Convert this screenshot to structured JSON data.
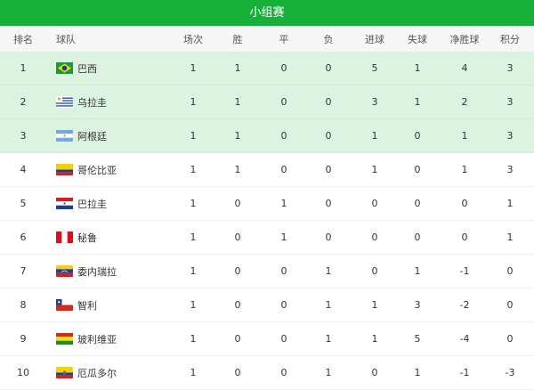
{
  "title": "小组赛",
  "columns": [
    "排名",
    "球队",
    "场次",
    "胜",
    "平",
    "负",
    "进球",
    "失球",
    "净胜球",
    "积分"
  ],
  "rows": [
    {
      "rank": "1",
      "team": "巴西",
      "flag": "brazil-flag",
      "p": "1",
      "w": "1",
      "d": "0",
      "l": "0",
      "gf": "5",
      "ga": "1",
      "gd": "4",
      "pts": "3",
      "qualified": true
    },
    {
      "rank": "2",
      "team": "乌拉圭",
      "flag": "uruguay-flag",
      "p": "1",
      "w": "1",
      "d": "0",
      "l": "0",
      "gf": "3",
      "ga": "1",
      "gd": "2",
      "pts": "3",
      "qualified": true
    },
    {
      "rank": "3",
      "team": "阿根廷",
      "flag": "argentina-flag",
      "p": "1",
      "w": "1",
      "d": "0",
      "l": "0",
      "gf": "1",
      "ga": "0",
      "gd": "1",
      "pts": "3",
      "qualified": true
    },
    {
      "rank": "4",
      "team": "哥伦比亚",
      "flag": "colombia-flag",
      "p": "1",
      "w": "1",
      "d": "0",
      "l": "0",
      "gf": "1",
      "ga": "0",
      "gd": "1",
      "pts": "3"
    },
    {
      "rank": "5",
      "team": "巴拉圭",
      "flag": "paraguay-flag",
      "p": "1",
      "w": "0",
      "d": "1",
      "l": "0",
      "gf": "0",
      "ga": "0",
      "gd": "0",
      "pts": "1"
    },
    {
      "rank": "6",
      "team": "秘鲁",
      "flag": "peru-flag",
      "p": "1",
      "w": "0",
      "d": "1",
      "l": "0",
      "gf": "0",
      "ga": "0",
      "gd": "0",
      "pts": "1"
    },
    {
      "rank": "7",
      "team": "委内瑞拉",
      "flag": "venezuela-flag",
      "p": "1",
      "w": "0",
      "d": "0",
      "l": "1",
      "gf": "0",
      "ga": "1",
      "gd": "-1",
      "pts": "0"
    },
    {
      "rank": "8",
      "team": "智利",
      "flag": "chile-flag",
      "p": "1",
      "w": "0",
      "d": "0",
      "l": "1",
      "gf": "1",
      "ga": "3",
      "gd": "-2",
      "pts": "0"
    },
    {
      "rank": "9",
      "team": "玻利维亚",
      "flag": "bolivia-flag",
      "p": "1",
      "w": "0",
      "d": "0",
      "l": "1",
      "gf": "1",
      "ga": "5",
      "gd": "-4",
      "pts": "0"
    },
    {
      "rank": "10",
      "team": "厄瓜多尔",
      "flag": "ecuador-flag",
      "p": "1",
      "w": "0",
      "d": "0",
      "l": "1",
      "gf": "0",
      "ga": "1",
      "gd": "-1",
      "pts": "-3"
    }
  ],
  "colors": {
    "header": "#17b13a",
    "qualified_row": "#dcf3e2"
  }
}
